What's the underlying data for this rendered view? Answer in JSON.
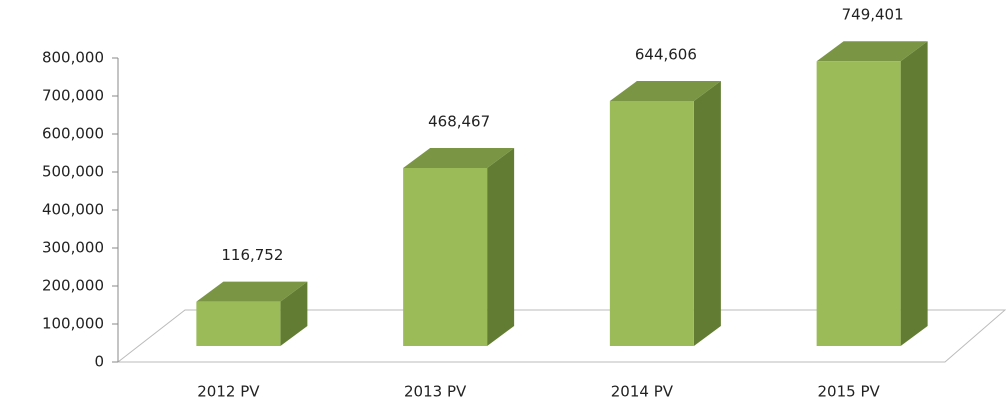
{
  "chart_data": {
    "type": "bar3d",
    "categories": [
      "2012 PV",
      "2013 PV",
      "2014 PV",
      "2015 PV"
    ],
    "values": [
      116752,
      468467,
      644606,
      749401
    ],
    "value_labels": [
      "116,752",
      "468,467",
      "644,606",
      "749,401"
    ],
    "color": "#9bbb59",
    "ylim": [
      0,
      800000
    ],
    "yticks": [
      0,
      {
        "value": 100000,
        "label": "100,000"
      },
      {
        "value": 200000,
        "label": "200,000"
      },
      {
        "value": 300000,
        "label": "300,000"
      },
      {
        "value": 400000,
        "label": "400,000"
      },
      {
        "value": 500000,
        "label": "500,000"
      },
      {
        "value": 600000,
        "label": "600,000"
      },
      {
        "value": 700000,
        "label": "700,000"
      },
      {
        "value": 800000,
        "label": "800,000"
      }
    ],
    "grid": false
  }
}
